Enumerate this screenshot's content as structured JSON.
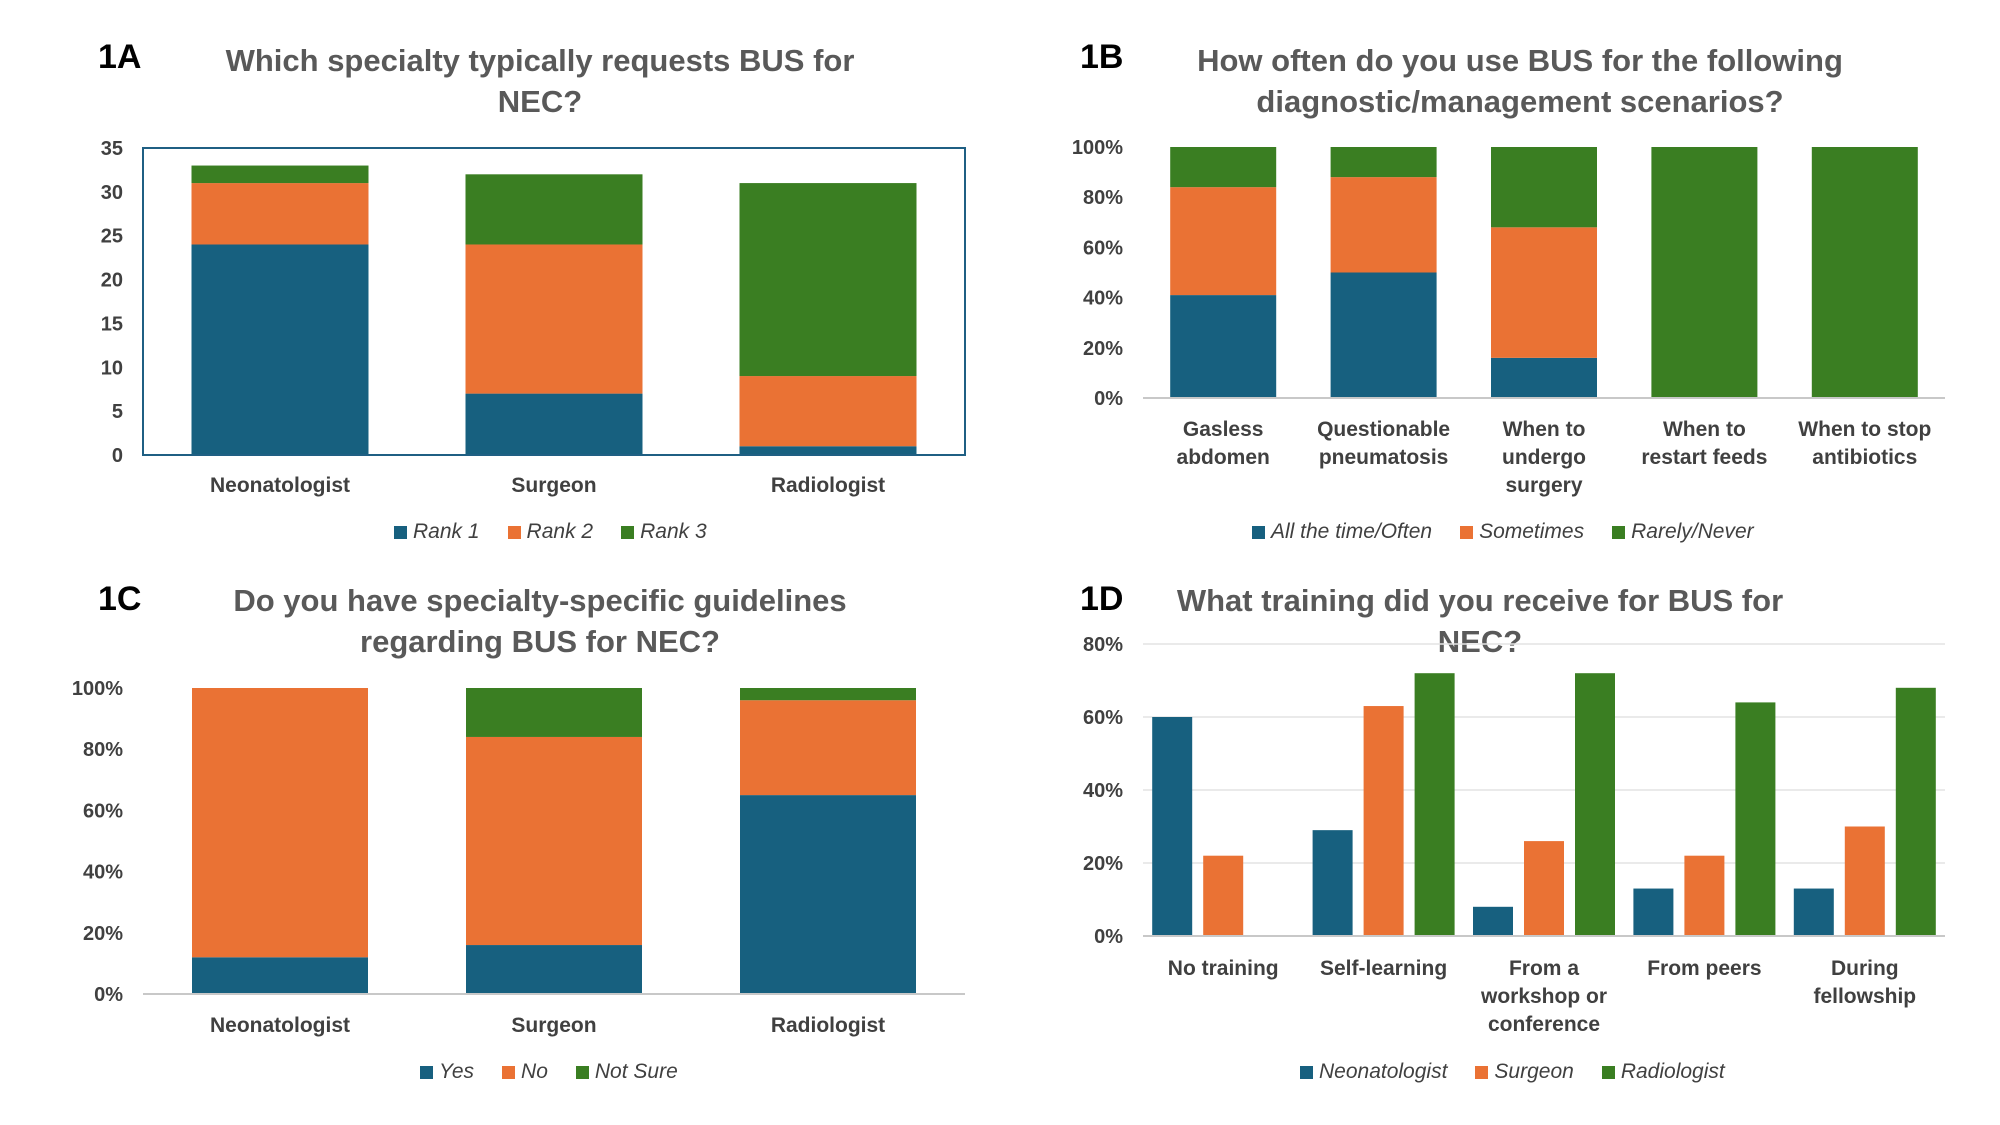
{
  "colors": {
    "blue": "#17607f",
    "orange": "#ea7234",
    "green": "#3a7e22",
    "axis": "#c8c8c8",
    "frame": "#1f5f83"
  },
  "panels": [
    {
      "tag": "1A",
      "title_lines": [
        "Which specialty typically requests BUS for",
        "NEC?"
      ]
    },
    {
      "tag": "1B",
      "title_lines": [
        "How often do you use BUS for the following",
        "diagnostic/management scenarios?"
      ]
    },
    {
      "tag": "1C",
      "title_lines": [
        "Do you have specialty-specific guidelines",
        "regarding BUS for NEC?"
      ]
    },
    {
      "tag": "1D",
      "title_lines": [
        "What training did you receive for BUS for NEC?"
      ]
    }
  ],
  "chart_data": [
    {
      "type": "bar",
      "stacked": true,
      "title": "Which specialty typically requests BUS for NEC?",
      "categories": [
        "Neonatologist",
        "Surgeon",
        "Radiologist"
      ],
      "series": [
        {
          "name": "Rank 1",
          "values": [
            24,
            7,
            1
          ],
          "color": "#17607f"
        },
        {
          "name": "Rank 2",
          "values": [
            7,
            17,
            8
          ],
          "color": "#ea7234"
        },
        {
          "name": "Rank 3",
          "values": [
            2,
            8,
            22
          ],
          "color": "#3a7e22"
        }
      ],
      "ylim": [
        0,
        35
      ],
      "yticks": [
        "0",
        "5",
        "10",
        "15",
        "20",
        "25",
        "30",
        "35"
      ],
      "legend": "bottom",
      "grid": false
    },
    {
      "type": "bar",
      "stacked": true,
      "title": "How often do you use BUS for the following diagnostic/management scenarios?",
      "categories": [
        [
          "Gasless",
          "abdomen"
        ],
        [
          "Questionable",
          "pneumatosis"
        ],
        [
          "When to",
          "undergo",
          "surgery"
        ],
        [
          "When to",
          "restart feeds"
        ],
        [
          "When to stop",
          "antibiotics"
        ]
      ],
      "series": [
        {
          "name": "All the time/Often",
          "values": [
            41,
            50,
            16,
            0,
            0
          ],
          "color": "#17607f"
        },
        {
          "name": "Sometimes",
          "values": [
            43,
            38,
            52,
            0,
            0
          ],
          "color": "#ea7234"
        },
        {
          "name": "Rarely/Never",
          "values": [
            16,
            12,
            32,
            100,
            100
          ],
          "color": "#3a7e22"
        }
      ],
      "ylim": [
        0,
        100
      ],
      "yticks": [
        "0%",
        "20%",
        "40%",
        "60%",
        "80%",
        "100%"
      ],
      "legend": "bottom",
      "grid": false
    },
    {
      "type": "bar",
      "stacked": true,
      "title": "Do you have specialty-specific guidelines regarding BUS for NEC?",
      "categories": [
        "Neonatologist",
        "Surgeon",
        "Radiologist"
      ],
      "series": [
        {
          "name": "Yes",
          "values": [
            12,
            16,
            65
          ],
          "color": "#17607f"
        },
        {
          "name": "No",
          "values": [
            88,
            68,
            31
          ],
          "color": "#ea7234"
        },
        {
          "name": "Not Sure",
          "values": [
            0,
            16,
            4
          ],
          "color": "#3a7e22"
        }
      ],
      "ylim": [
        0,
        100
      ],
      "yticks": [
        "0%",
        "20%",
        "40%",
        "60%",
        "80%",
        "100%"
      ],
      "legend": "bottom",
      "grid": false
    },
    {
      "type": "bar",
      "stacked": false,
      "title": "What training did you receive for BUS for NEC?",
      "categories": [
        [
          "No training"
        ],
        [
          "Self-learning"
        ],
        [
          "From a",
          "workshop or",
          "conference"
        ],
        [
          "From peers"
        ],
        [
          "During",
          "fellowship"
        ]
      ],
      "series": [
        {
          "name": "Neonatologist",
          "values": [
            60,
            29,
            8,
            13,
            13
          ],
          "color": "#17607f"
        },
        {
          "name": "Surgeon",
          "values": [
            22,
            63,
            26,
            22,
            30
          ],
          "color": "#ea7234"
        },
        {
          "name": "Radiologist",
          "values": [
            0,
            72,
            72,
            64,
            68
          ],
          "color": "#3a7e22"
        }
      ],
      "ylim": [
        0,
        80
      ],
      "yticks": [
        "0%",
        "20%",
        "40%",
        "60%",
        "80%"
      ],
      "legend": "bottom",
      "grid": true
    }
  ]
}
